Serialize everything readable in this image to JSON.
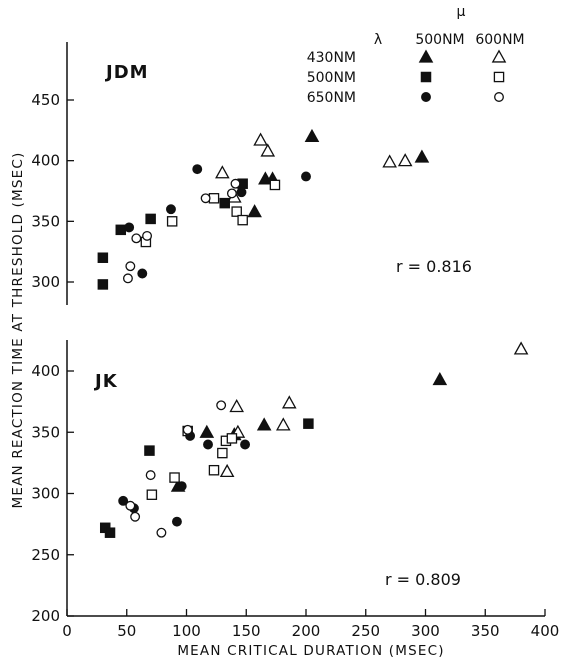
{
  "chart_data": {
    "type": "scatter",
    "xlabel": "MEAN CRITICAL DURATION (MSEC)",
    "ylabel": "MEAN REACTION TIME AT THRESHOLD (MSEC)",
    "xlim": [
      0,
      400
    ],
    "xticks": [
      "0",
      "50",
      "100",
      "150",
      "200",
      "250",
      "300",
      "350",
      "400"
    ],
    "legend": {
      "symbol_lambda": "λ",
      "symbol_mu": "μ",
      "col_500": "500NM",
      "col_600": "600NM",
      "row_430": "430NM",
      "row_500": "500NM",
      "row_650": "650NM",
      "placement": "top-right"
    },
    "panels": [
      {
        "label": "JDM",
        "r_label": "r = 0.816",
        "ylim": [
          290,
          470
        ],
        "yticks": [
          "300",
          "350",
          "400",
          "450"
        ],
        "series": [
          {
            "marker": "triangle",
            "fill": "filled",
            "points": [
              [
                157,
                358
              ],
              [
                166,
                385
              ],
              [
                172,
                385
              ],
              [
                205,
                420
              ],
              [
                297,
                403
              ]
            ]
          },
          {
            "marker": "triangle",
            "fill": "open",
            "points": [
              [
                130,
                390
              ],
              [
                140,
                370
              ],
              [
                162,
                417
              ],
              [
                168,
                408
              ],
              [
                270,
                399
              ],
              [
                283,
                400
              ]
            ]
          },
          {
            "marker": "square",
            "fill": "filled",
            "points": [
              [
                30,
                320
              ],
              [
                30,
                298
              ],
              [
                45,
                343
              ],
              [
                70,
                352
              ],
              [
                132,
                365
              ],
              [
                147,
                381
              ]
            ]
          },
          {
            "marker": "square",
            "fill": "open",
            "points": [
              [
                66,
                333
              ],
              [
                88,
                350
              ],
              [
                123,
                369
              ],
              [
                142,
                358
              ],
              [
                147,
                351
              ],
              [
                174,
                380
              ]
            ]
          },
          {
            "marker": "circle",
            "fill": "filled",
            "points": [
              [
                52,
                345
              ],
              [
                63,
                307
              ],
              [
                87,
                360
              ],
              [
                109,
                393
              ],
              [
                146,
                374
              ],
              [
                200,
                387
              ]
            ]
          },
          {
            "marker": "circle",
            "fill": "open",
            "points": [
              [
                51,
                303
              ],
              [
                53,
                313
              ],
              [
                58,
                336
              ],
              [
                67,
                338
              ],
              [
                116,
                369
              ],
              [
                138,
                373
              ],
              [
                141,
                381
              ]
            ]
          }
        ]
      },
      {
        "label": "JK",
        "r_label": "r = 0.809",
        "ylim": [
          200,
          420
        ],
        "yticks": [
          "200",
          "250",
          "300",
          "350",
          "400"
        ],
        "series": [
          {
            "marker": "triangle",
            "fill": "filled",
            "points": [
              [
                93,
                306
              ],
              [
                117,
                350
              ],
              [
                140,
                348
              ],
              [
                165,
                356
              ],
              [
                312,
                393
              ]
            ]
          },
          {
            "marker": "triangle",
            "fill": "open",
            "points": [
              [
                134,
                318
              ],
              [
                142,
                371
              ],
              [
                143,
                350
              ],
              [
                181,
                356
              ],
              [
                186,
                374
              ],
              [
                380,
                418
              ]
            ]
          },
          {
            "marker": "square",
            "fill": "filled",
            "points": [
              [
                32,
                272
              ],
              [
                36,
                268
              ],
              [
                69,
                335
              ],
              [
                202,
                357
              ]
            ]
          },
          {
            "marker": "square",
            "fill": "open",
            "points": [
              [
                71,
                299
              ],
              [
                90,
                313
              ],
              [
                101,
                351
              ],
              [
                123,
                319
              ],
              [
                130,
                333
              ],
              [
                133,
                343
              ],
              [
                138,
                345
              ]
            ]
          },
          {
            "marker": "circle",
            "fill": "filled",
            "points": [
              [
                47,
                294
              ],
              [
                56,
                288
              ],
              [
                92,
                277
              ],
              [
                96,
                306
              ],
              [
                103,
                347
              ],
              [
                118,
                340
              ],
              [
                149,
                340
              ]
            ]
          },
          {
            "marker": "circle",
            "fill": "open",
            "points": [
              [
                53,
                290
              ],
              [
                57,
                281
              ],
              [
                70,
                315
              ],
              [
                79,
                268
              ],
              [
                101,
                352
              ],
              [
                129,
                372
              ]
            ]
          }
        ]
      }
    ]
  }
}
